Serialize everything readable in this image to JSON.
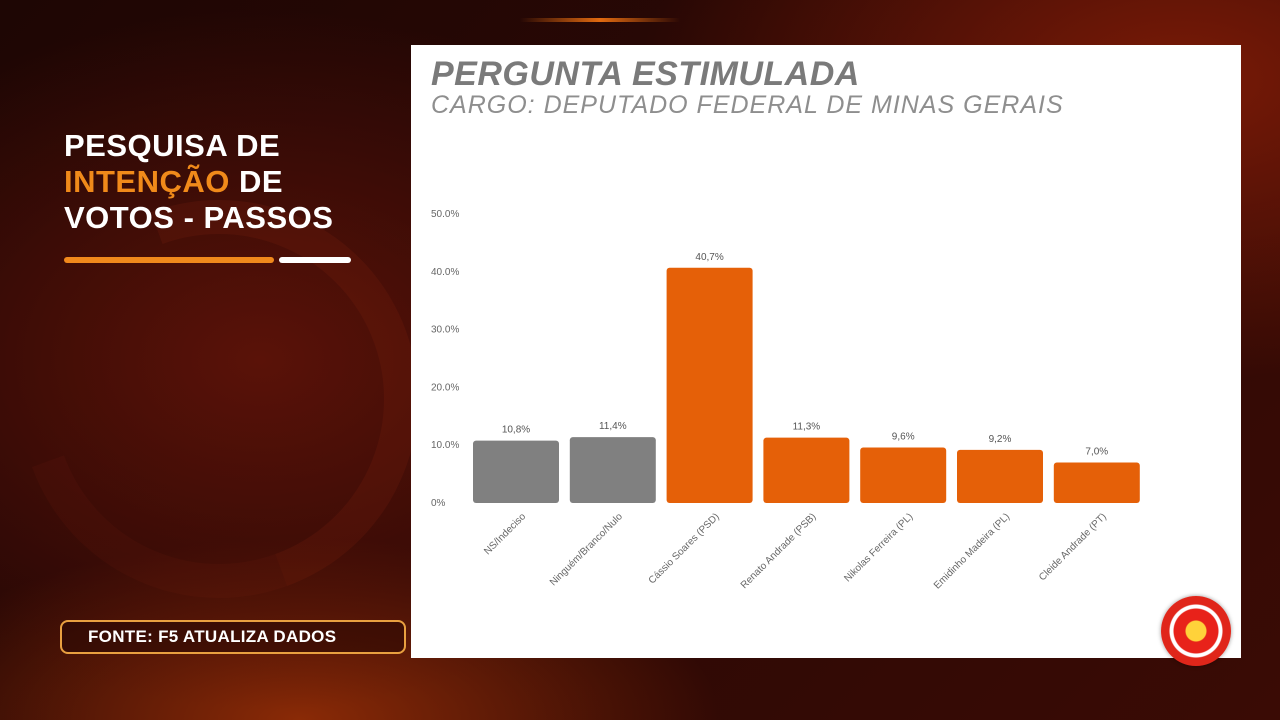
{
  "overlay": {
    "headline_line1": "PESQUISA DE",
    "headline_highlight": "INTENÇÃO",
    "headline_line2_rest": " DE",
    "headline_line3": "VOTOS - PASSOS",
    "source": "FONTE: F5 ATUALIZA DADOS"
  },
  "colors": {
    "accent": "#f08a1a",
    "bar_neutral": "#808080",
    "bar_candidate": "#e56008"
  },
  "chart_data": {
    "type": "bar",
    "title": "PERGUNTA ESTIMULADA",
    "subtitle": "CARGO: DEPUTADO FEDERAL DE MINAS GERAIS",
    "categories": [
      "NS/Indeciso",
      "Ninguém/Branco/Nulo",
      "Cássio Soares (PSD)",
      "Renato Andrade (PSB)",
      "Nikolas Ferreira (PL)",
      "Emidinho Madeira (PL)",
      "Cleide Andrade (PT)"
    ],
    "values": [
      10.8,
      11.4,
      40.7,
      11.3,
      9.6,
      9.2,
      7.0
    ],
    "value_labels": [
      "10,8%",
      "11,4%",
      "40,7%",
      "11,3%",
      "9,6%",
      "9,2%",
      "7,0%"
    ],
    "bar_color_keys": [
      "bar_neutral",
      "bar_neutral",
      "bar_candidate",
      "bar_candidate",
      "bar_candidate",
      "bar_candidate",
      "bar_candidate"
    ],
    "yticks": [
      0,
      10,
      20,
      30,
      40,
      50
    ],
    "ytick_labels": [
      "0%",
      "10.0%",
      "20.0%",
      "30.0%",
      "40.0%",
      "50.0%"
    ],
    "ylim": [
      0,
      50
    ],
    "xlabel": "",
    "ylabel": "",
    "grid": false
  }
}
